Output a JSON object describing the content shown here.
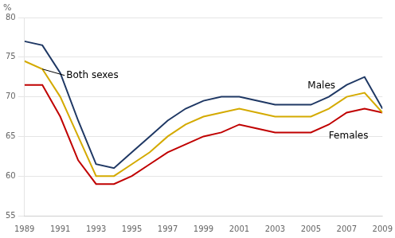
{
  "chart_data": {
    "type": "line",
    "ylabel": "%",
    "x": [
      1989,
      1990,
      1991,
      1992,
      1993,
      1994,
      1995,
      1996,
      1997,
      1998,
      1999,
      2000,
      2001,
      2002,
      2003,
      2004,
      2005,
      2006,
      2007,
      2008,
      2009
    ],
    "series": [
      {
        "name": "Males",
        "color": "#1f3864",
        "values": [
          77.0,
          76.5,
          73.0,
          67.0,
          61.5,
          61.0,
          63.0,
          65.0,
          67.0,
          68.5,
          69.5,
          70.0,
          70.0,
          69.5,
          69.0,
          69.0,
          69.0,
          70.0,
          71.5,
          72.5,
          68.5
        ]
      },
      {
        "name": "Both sexes",
        "color": "#d4aa00",
        "values": [
          74.5,
          73.5,
          70.0,
          65.0,
          60.0,
          60.0,
          61.5,
          63.0,
          65.0,
          66.5,
          67.5,
          68.0,
          68.5,
          68.0,
          67.5,
          67.5,
          67.5,
          68.5,
          70.0,
          70.5,
          68.0
        ]
      },
      {
        "name": "Females",
        "color": "#c00000",
        "values": [
          71.5,
          71.5,
          67.5,
          62.0,
          59.0,
          59.0,
          60.0,
          61.5,
          63.0,
          64.0,
          65.0,
          65.5,
          66.5,
          66.0,
          65.5,
          65.5,
          65.5,
          66.5,
          68.0,
          68.5,
          68.0
        ]
      }
    ],
    "xlim": [
      1989,
      2009
    ],
    "xticks": [
      1989,
      1991,
      1993,
      1995,
      1997,
      1999,
      2001,
      2003,
      2005,
      2007,
      2009
    ],
    "ylim": [
      55,
      80
    ],
    "yticks": [
      55,
      60,
      65,
      70,
      75,
      80
    ],
    "grid": true
  }
}
